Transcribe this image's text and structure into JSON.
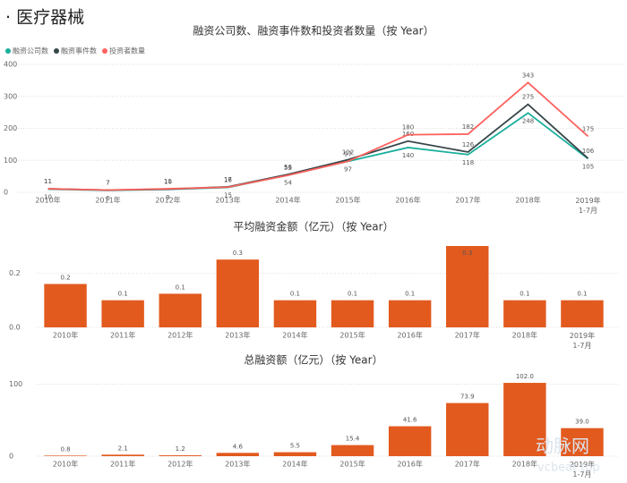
{
  "title": "· 医疗器械",
  "watermark": [
    "动脉网",
    "vcbeat.top"
  ],
  "chart_data": [
    {
      "type": "line",
      "title": "融资公司数、融资事件数和投资者数量（按 Year）",
      "categories": [
        "2010年",
        "2011年",
        "2012年",
        "2013年",
        "2014年",
        "2015年",
        "2016年",
        "2017年",
        "2018年",
        "2019年\n1-7月"
      ],
      "series": [
        {
          "name": "融资公司数",
          "color": "#1aaf9c",
          "values": [
            10,
            6,
            9,
            15,
            54,
            97,
            140,
            118,
            248,
            105
          ]
        },
        {
          "name": "融资事件数",
          "color": "#374649",
          "values": [
            11,
            7,
            10,
            17,
            56,
            102,
            160,
            126,
            275,
            106
          ]
        },
        {
          "name": "投资者数量",
          "color": "#fd625e",
          "values": [
            11,
            7,
            11,
            16,
            53,
            97,
            180,
            182,
            343,
            175
          ]
        }
      ],
      "ylim": [
        0,
        400
      ],
      "yticks": [
        0,
        100,
        200,
        300,
        400
      ],
      "grid": true
    },
    {
      "type": "bar",
      "title": "平均融资金额（亿元）（按 Year）",
      "categories": [
        "2010年",
        "2011年",
        "2012年",
        "2013年",
        "2014年",
        "2015年",
        "2016年",
        "2017年",
        "2018年",
        "2019年\n1-7月"
      ],
      "values": [
        0.16,
        0.1,
        0.124,
        0.25,
        0.1,
        0.1,
        0.1,
        0.3,
        0.1,
        0.1
      ],
      "value_labels": [
        "0.2",
        "0.1",
        "0.1",
        "0.3",
        "0.1",
        "0.1",
        "0.1",
        "0.3",
        "0.1",
        "0.1"
      ],
      "color": "#e25a1e",
      "ylim": [
        0,
        0.31
      ],
      "yticks": [
        {
          "value": 0,
          "label": "0.0"
        },
        0.2
      ],
      "grid": true
    },
    {
      "type": "bar",
      "title": "总融资额（亿元）（按 Year）",
      "categories": [
        "2010年",
        "2011年",
        "2012年",
        "2013年",
        "2014年",
        "2015年",
        "2016年",
        "2017年",
        "2018年",
        "2019年\n1-7月"
      ],
      "values": [
        0.8,
        2.1,
        1.2,
        4.6,
        5.5,
        15.4,
        41.6,
        73.9,
        102.0,
        39.0
      ],
      "value_labels": [
        "0.8",
        "2.1",
        "1.2",
        "4.6",
        "5.5",
        "15.4",
        "41.6",
        "73.9",
        "102.0",
        "39.0"
      ],
      "color": "#e25a1e",
      "ylim": [
        0,
        112
      ],
      "yticks": [
        0,
        100
      ],
      "grid": true
    }
  ]
}
